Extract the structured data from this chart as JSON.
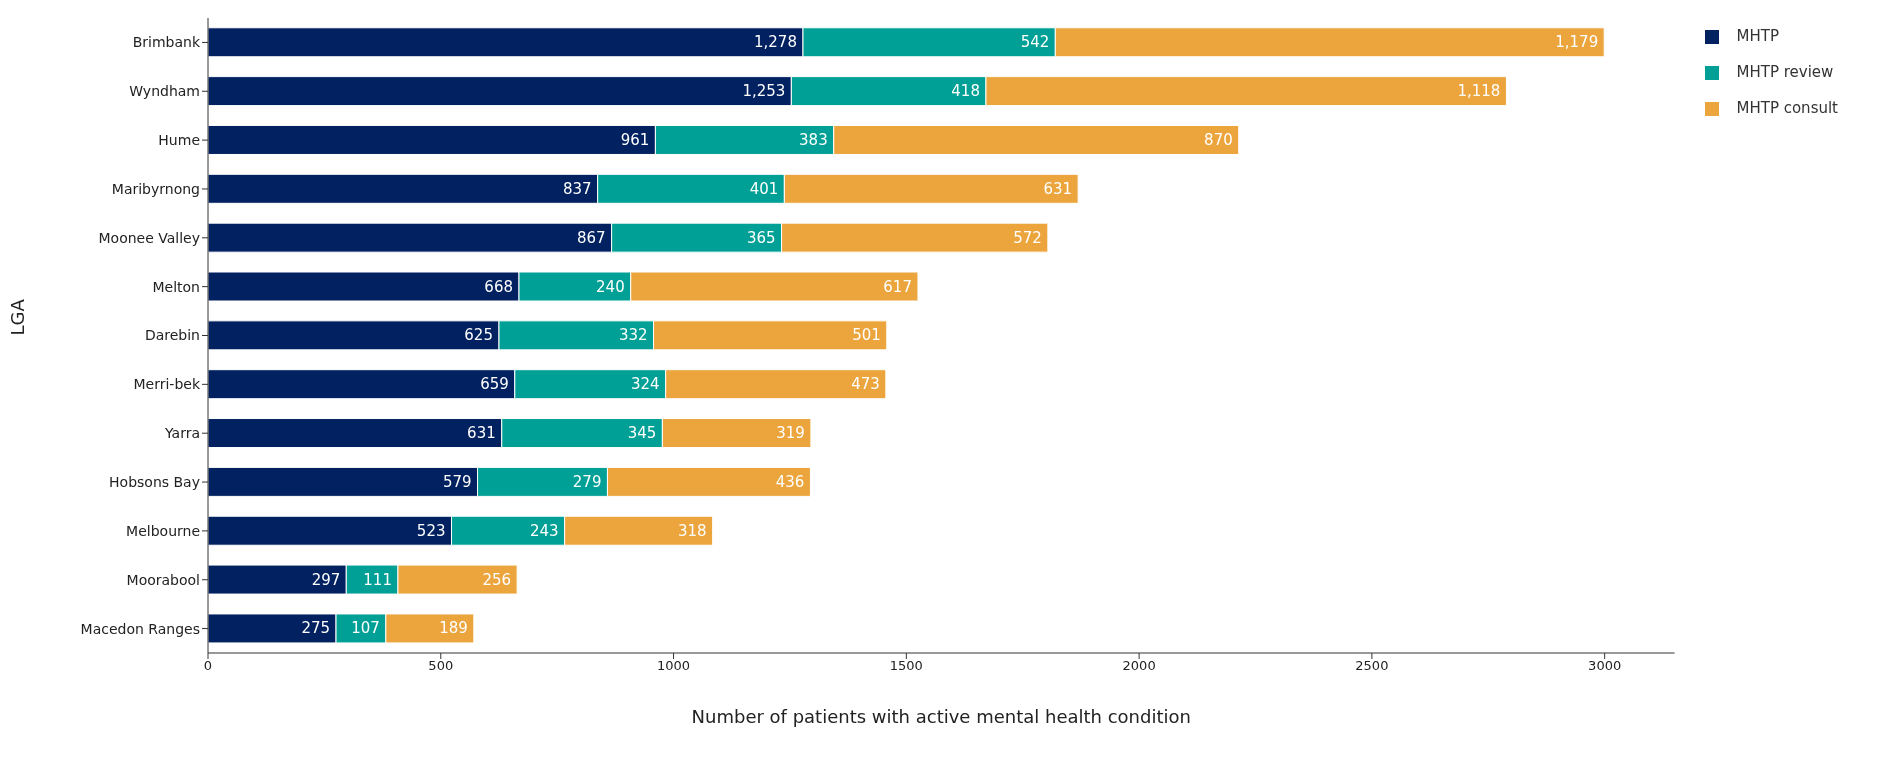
{
  "chart_data": {
    "type": "bar",
    "orientation": "horizontal",
    "stacked": true,
    "xlabel": "Number of patients with active mental health condition",
    "ylabel": "LGA",
    "categories": [
      "Brimbank",
      "Wyndham",
      "Hume",
      "Maribyrnong",
      "Moonee Valley",
      "Melton",
      "Darebin",
      "Merri-bek",
      "Yarra",
      "Hobsons Bay",
      "Melbourne",
      "Moorabool",
      "Macedon Ranges"
    ],
    "series": [
      {
        "name": "MHTP",
        "color": "#022160",
        "values": [
          1278,
          1253,
          961,
          837,
          867,
          668,
          625,
          659,
          631,
          579,
          523,
          297,
          275
        ],
        "value_labels": [
          "1,278",
          "1,253",
          "961",
          "837",
          "867",
          "668",
          "625",
          "659",
          "631",
          "579",
          "523",
          "297",
          "275"
        ]
      },
      {
        "name": "MHTP review",
        "color": "#00a096",
        "values": [
          542,
          418,
          383,
          401,
          365,
          240,
          332,
          324,
          345,
          279,
          243,
          111,
          107
        ],
        "value_labels": [
          "542",
          "418",
          "383",
          "401",
          "365",
          "240",
          "332",
          "324",
          "345",
          "279",
          "243",
          "111",
          "107"
        ]
      },
      {
        "name": "MHTP consult",
        "color": "#eba53c",
        "values": [
          1179,
          1118,
          870,
          631,
          572,
          617,
          501,
          473,
          319,
          436,
          318,
          256,
          189
        ],
        "value_labels": [
          "1,179",
          "1,118",
          "870",
          "631",
          "572",
          "617",
          "501",
          "473",
          "319",
          "436",
          "318",
          "256",
          "189"
        ]
      }
    ],
    "xlim": [
      0,
      3150
    ],
    "xticks": [
      0,
      500,
      1000,
      1500,
      2000,
      2500,
      3000
    ],
    "grid": false,
    "legend": "top right"
  }
}
